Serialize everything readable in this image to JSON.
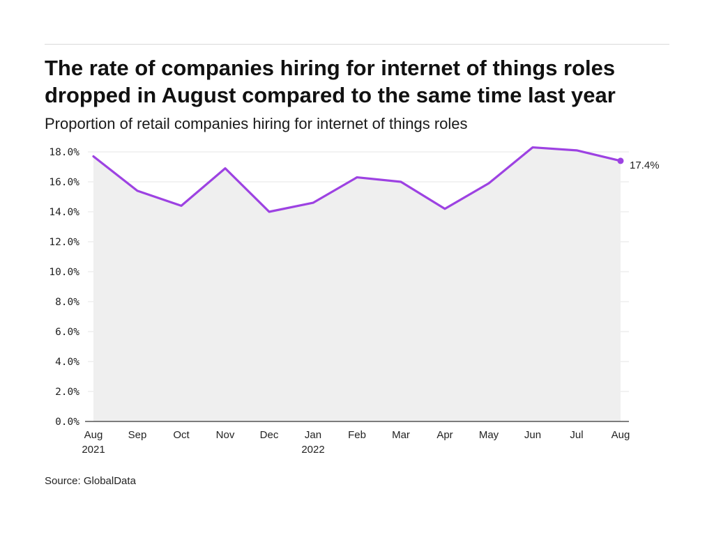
{
  "title_lines": [
    "The rate of companies hiring for internet of things roles",
    "dropped in August compared to the same time last year"
  ],
  "subtitle": "Proportion of retail companies hiring for internet of things roles",
  "source": "Source: GlobalData",
  "colors": {
    "line": "#9d42e2",
    "area": "#efefef",
    "grid": "#e4e4e4",
    "axis": "#333333"
  },
  "chart_data": {
    "type": "line",
    "categories": [
      [
        "Aug",
        "2021"
      ],
      [
        "Sep",
        ""
      ],
      [
        "Oct",
        ""
      ],
      [
        "Nov",
        ""
      ],
      [
        "Dec",
        ""
      ],
      [
        "Jan",
        "2022"
      ],
      [
        "Feb",
        ""
      ],
      [
        "Mar",
        ""
      ],
      [
        "Apr",
        ""
      ],
      [
        "May",
        ""
      ],
      [
        "Jun",
        ""
      ],
      [
        "Jul",
        ""
      ],
      [
        "Aug",
        ""
      ]
    ],
    "series": [
      {
        "values": [
          17.7,
          15.4,
          14.4,
          16.9,
          14.0,
          14.6,
          16.3,
          16.0,
          14.2,
          15.9,
          18.3,
          18.1,
          17.4
        ]
      }
    ],
    "ylim": [
      0,
      18
    ],
    "yticks": [
      "0.0%",
      "2.0%",
      "4.0%",
      "6.0%",
      "8.0%",
      "10.0%",
      "12.0%",
      "14.0%",
      "16.0%",
      "18.0%"
    ],
    "end_label": "17.4%",
    "grid": true,
    "area_fill": true
  }
}
